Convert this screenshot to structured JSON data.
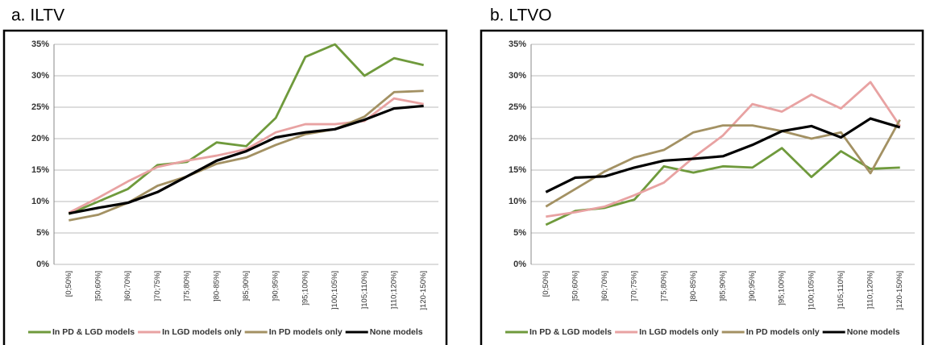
{
  "chart_data": [
    {
      "type": "line",
      "title": "a.   ILTV",
      "categories": [
        "[0;50%]",
        "]50;60%]",
        "]60;70%]",
        "]70;75%]",
        "]75;80%]",
        "]80-85%]",
        "]85;90%]",
        "]90;95%]",
        "]95;100%]",
        "]100;105%]",
        "]105;110%]",
        "]110;120%]",
        "]120-150%]"
      ],
      "series": [
        {
          "name": "In PD & LGD models",
          "color": "#6f9a3c",
          "values": [
            8,
            10,
            12,
            15.8,
            16.3,
            19.4,
            18.8,
            23.3,
            33,
            35,
            30,
            32.8,
            31.7
          ]
        },
        {
          "name": "In LGD models only",
          "color": "#e8a2a2",
          "values": [
            8.2,
            10.6,
            13.2,
            15.5,
            16.5,
            17.3,
            18.3,
            21,
            22.3,
            22.3,
            22.8,
            26.4,
            25.5
          ]
        },
        {
          "name": "In PD models only",
          "color": "#a39163",
          "values": [
            7,
            7.9,
            9.8,
            12.5,
            14,
            16,
            17,
            19,
            20.7,
            21.5,
            23.5,
            27.4,
            27.6
          ]
        },
        {
          "name": "None models",
          "color": "#000000",
          "values": [
            8.1,
            9,
            9.8,
            11.5,
            14,
            16.5,
            18,
            20.2,
            21,
            21.5,
            23,
            24.8,
            25.2
          ]
        }
      ],
      "ylim": [
        0,
        35
      ],
      "yticks": [
        {
          "value": 0,
          "label": "0%"
        },
        {
          "value": 5,
          "label": "5%"
        },
        {
          "value": 10,
          "label": "10%"
        },
        {
          "value": 15,
          "label": "15%"
        },
        {
          "value": 20,
          "label": "20%"
        },
        {
          "value": 25,
          "label": "25%"
        },
        {
          "value": 30,
          "label": "30%"
        },
        {
          "value": 35,
          "label": "35%"
        }
      ],
      "grid": true,
      "legend": "bottom"
    },
    {
      "type": "line",
      "title": "b.   LTVO",
      "categories": [
        "[0;50%]",
        "]50;60%]",
        "]60;70%]",
        "]70;75%]",
        "]75;80%]",
        "]80-85%]",
        "]85;90%]",
        "]90;95%]",
        "]95;100%]",
        "]100;105%]",
        "]105;110%]",
        "]110;120%]",
        "]120-150%]"
      ],
      "series": [
        {
          "name": "In PD & LGD models",
          "color": "#6f9a3c",
          "values": [
            6.3,
            8.5,
            9,
            10.3,
            15.6,
            14.6,
            15.6,
            15.4,
            18.5,
            13.9,
            18,
            15.2,
            15.4
          ]
        },
        {
          "name": "In LGD models only",
          "color": "#e8a2a2",
          "values": [
            7.6,
            8.3,
            9.2,
            11,
            13,
            17,
            20.5,
            25.5,
            24.3,
            27,
            24.8,
            29,
            22
          ]
        },
        {
          "name": "In PD models only",
          "color": "#a39163",
          "values": [
            9.2,
            12,
            14.8,
            17,
            18.2,
            21,
            22.1,
            22.1,
            21.2,
            20,
            21,
            14.5,
            23
          ]
        },
        {
          "name": "None models",
          "color": "#000000",
          "values": [
            11.5,
            13.8,
            14,
            15.4,
            16.5,
            16.8,
            17.2,
            19,
            21.2,
            22,
            20.2,
            23.2,
            21.8
          ]
        }
      ],
      "ylim": [
        0,
        35
      ],
      "yticks": [
        {
          "value": 0,
          "label": "0%"
        },
        {
          "value": 5,
          "label": "5%"
        },
        {
          "value": 10,
          "label": "10%"
        },
        {
          "value": 15,
          "label": "15%"
        },
        {
          "value": 20,
          "label": "20%"
        },
        {
          "value": 25,
          "label": "25%"
        },
        {
          "value": 30,
          "label": "30%"
        },
        {
          "value": 35,
          "label": "35%"
        }
      ],
      "grid": true,
      "legend": "bottom"
    }
  ]
}
